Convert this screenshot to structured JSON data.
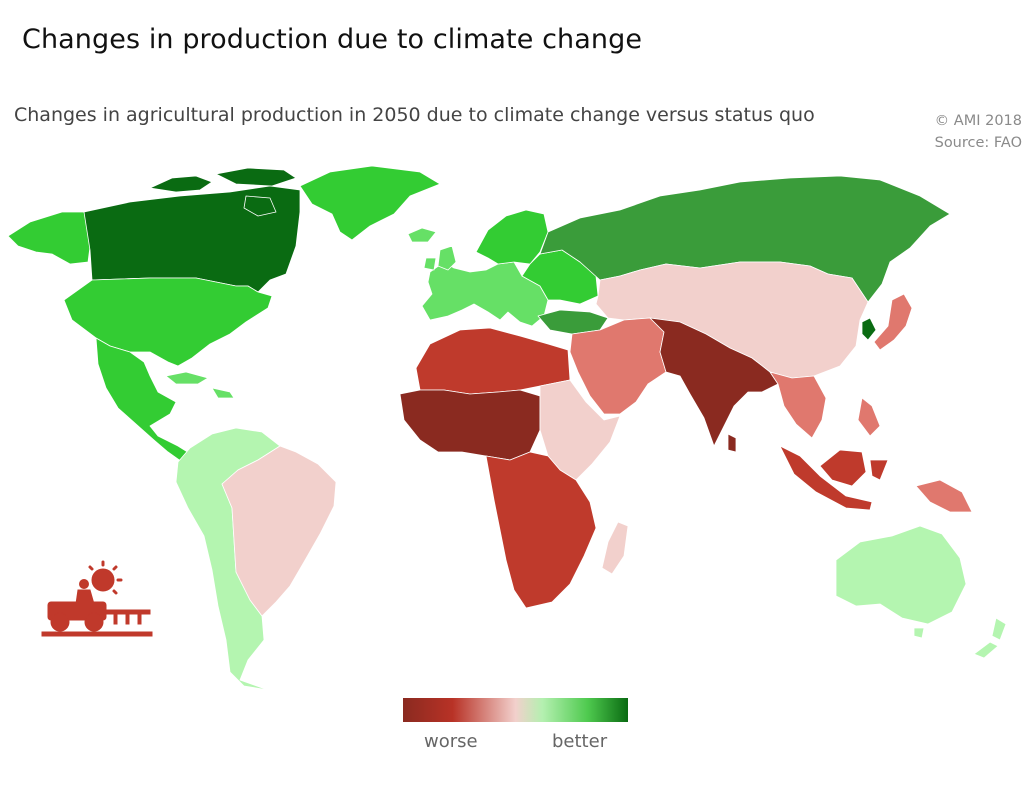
{
  "title": "Changes in production due to climate change",
  "subtitle": "Changes in agricultural production in 2050 due to climate change versus status quo",
  "credit": {
    "copyright": "© AMI 2018",
    "source": "Source: FAO"
  },
  "legend": {
    "left_label": "worse",
    "right_label": "better"
  },
  "colors": {
    "dark_green": "#0a6b12",
    "green": "#3a9c3a",
    "mid_green": "#33cc33",
    "light_green": "#66e066",
    "pale_green": "#b4f5b0",
    "pale_red": "#f2d0cc",
    "light_red": "#e0786e",
    "red": "#bf3a2c",
    "dark_red": "#8a2a20",
    "icon_red": "#c0392b"
  },
  "icon": "farmer-tractor-sun-icon"
}
